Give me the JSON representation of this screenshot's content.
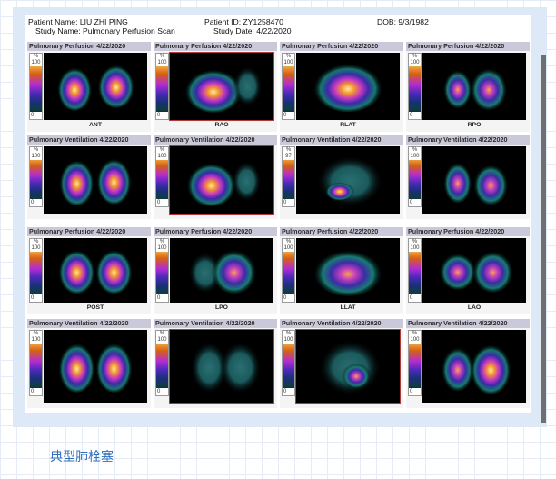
{
  "header": {
    "patient_name": "Patient Name: LIU ZHI PING",
    "patient_id": "Patient ID: ZY1258470",
    "dob": "DOB: 9/3/1982",
    "study_name": "Study Name: Pulmonary Perfusion Scan",
    "study_date": "Study Date: 4/22/2020"
  },
  "panels": [
    {
      "title": "Pulmonary Perfusion 4/22/2020",
      "scale_label": "%",
      "scale_max": "100",
      "scale_min": "0",
      "view": "ANT"
    },
    {
      "title": "Pulmonary Perfusion 4/22/2020",
      "scale_label": "%",
      "scale_max": "100",
      "scale_min": "0",
      "view": "RAO"
    },
    {
      "title": "Pulmonary Perfusion 4/22/2020",
      "scale_label": "%",
      "scale_max": "100",
      "scale_min": "0",
      "view": "RLAT"
    },
    {
      "title": "Pulmonary Perfusion 4/22/2020",
      "scale_label": "%",
      "scale_max": "100",
      "scale_min": "0",
      "view": "RPO"
    },
    {
      "title": "Pulmonary Ventilation 4/22/2020",
      "scale_label": "%",
      "scale_max": "100",
      "scale_min": "0",
      "view": ""
    },
    {
      "title": "Pulmonary Ventilation 4/22/2020",
      "scale_label": "%",
      "scale_max": "100",
      "scale_min": "0",
      "view": ""
    },
    {
      "title": "Pulmonary Ventilation 4/22/2020",
      "scale_label": "%",
      "scale_max": "97",
      "scale_min": "0",
      "view": ""
    },
    {
      "title": "Pulmonary Ventilation 4/22/2020",
      "scale_label": "%",
      "scale_max": "100",
      "scale_min": "0",
      "view": ""
    },
    {
      "title": "Pulmonary Perfusion 4/22/2020",
      "scale_label": "%",
      "scale_max": "100",
      "scale_min": "0",
      "view": "POST"
    },
    {
      "title": "Pulmonary Perfusion 4/22/2020",
      "scale_label": "%",
      "scale_max": "100",
      "scale_min": "0",
      "view": "LPO"
    },
    {
      "title": "Pulmonary Perfusion 4/22/2020",
      "scale_label": "%",
      "scale_max": "100",
      "scale_min": "0",
      "view": "LLAT"
    },
    {
      "title": "Pulmonary Perfusion 4/22/2020",
      "scale_label": "%",
      "scale_max": "100",
      "scale_min": "0",
      "view": "LAO"
    },
    {
      "title": "Pulmonary Ventilation 4/22/2020",
      "scale_label": "%",
      "scale_max": "100",
      "scale_min": "0",
      "view": ""
    },
    {
      "title": "Pulmonary Ventilation 4/22/2020",
      "scale_label": "%",
      "scale_max": "100",
      "scale_min": "0",
      "view": ""
    },
    {
      "title": "Pulmonary Ventilation 4/22/2020",
      "scale_label": "%",
      "scale_max": "100",
      "scale_min": "0",
      "view": ""
    },
    {
      "title": "Pulmonary Ventilation 4/22/2020",
      "scale_label": "%",
      "scale_max": "100",
      "scale_min": "0",
      "view": ""
    }
  ],
  "caption": "典型肺栓塞",
  "colors": {
    "frame": "#dde9f6",
    "caption": "#2f6fbd",
    "title_bar": "#c9c9d9"
  }
}
